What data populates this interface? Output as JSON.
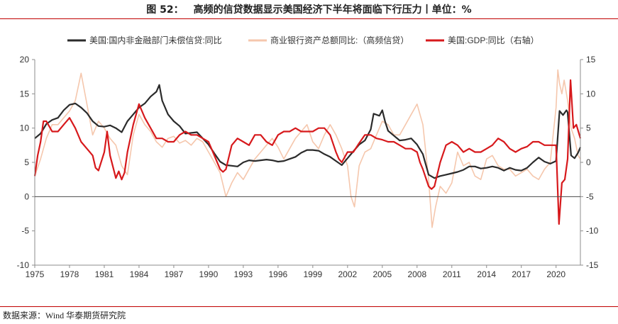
{
  "title": {
    "figure": "图 52：",
    "text": "高频的信贷数据显示美国经济下半年将面临下行压力丨单位：%"
  },
  "source": "数据来源：Wind 华泰期货研究院",
  "colors": {
    "credit": "#2b2b2b",
    "bank": "#f5c7ad",
    "gdp": "#d7191c",
    "accent": "#c00000"
  },
  "chart_data": {
    "type": "line",
    "legend": {
      "position": "top",
      "entries": [
        "美国:国内非金融部门未偿信贷:同比",
        "商业银行资产总额同比:（高频信贷）",
        "美国:GDP:同比（右轴）"
      ]
    },
    "x_ticks": [
      "1975",
      "1978",
      "1981",
      "1984",
      "1987",
      "1990",
      "1993",
      "1996",
      "1999",
      "2002",
      "2005",
      "2008",
      "2011",
      "2014",
      "2017",
      "2020"
    ],
    "xlim": [
      1975,
      2022.1
    ],
    "y_left": {
      "lim": [
        -10,
        20
      ],
      "ticks": [
        "-10",
        "-5",
        "0",
        "5",
        "10",
        "15",
        "20"
      ]
    },
    "y_right": {
      "lim": [
        -15,
        15
      ],
      "ticks": [
        "-15",
        "-10",
        "-5",
        "0",
        "5",
        "10",
        "15"
      ]
    },
    "grid": false,
    "series": [
      {
        "name": "美国:国内非金融部门未偿信贷:同比",
        "axis": "left",
        "x": [
          1975,
          1975.5,
          1976,
          1976.5,
          1977,
          1977.5,
          1978,
          1978.5,
          1979,
          1979.5,
          1980,
          1980.5,
          1981,
          1981.5,
          1982,
          1982.5,
          1983,
          1983.5,
          1984,
          1984.5,
          1985,
          1985.5,
          1985.75,
          1986,
          1986.5,
          1987,
          1987.5,
          1988,
          1989,
          1990,
          1990.5,
          1991,
          1991.5,
          1992,
          1992.5,
          1993,
          1993.5,
          1994,
          1994.5,
          1995,
          1995.5,
          1996,
          1996.5,
          1997,
          1997.5,
          1998,
          1998.5,
          1999,
          1999.5,
          2000,
          2000.5,
          2001,
          2001.5,
          2002,
          2002.5,
          2003,
          2003.5,
          2004,
          2004.25,
          2004.75,
          2005,
          2005.25,
          2005.5,
          2006,
          2006.5,
          2007,
          2007.5,
          2008,
          2008.5,
          2009,
          2009.5,
          2010,
          2010.5,
          2011,
          2011.5,
          2012,
          2012.5,
          2013,
          2013.5,
          2014,
          2014.5,
          2015,
          2015.5,
          2016,
          2016.5,
          2017,
          2017.5,
          2018,
          2018.5,
          2019,
          2019.5,
          2020,
          2020.3,
          2020.6,
          2020.9,
          2021,
          2021.3,
          2021.6,
          2021.9,
          2022.1
        ],
        "values": [
          8.5,
          9.2,
          10.6,
          11.2,
          11.5,
          12.6,
          13.4,
          13.6,
          13,
          12.2,
          11,
          10.3,
          10.2,
          10.4,
          10,
          9.4,
          11,
          12,
          13,
          13.6,
          14.6,
          15.3,
          16.3,
          14,
          12,
          11,
          10.3,
          9.2,
          9.4,
          7.6,
          6.3,
          5.1,
          4.6,
          4.5,
          4.4,
          5,
          5.3,
          5.2,
          5.3,
          5.4,
          5.3,
          5.1,
          5.2,
          5.5,
          5.8,
          6.4,
          6.8,
          6.8,
          6.7,
          6.2,
          5.8,
          5.2,
          4.6,
          5.6,
          6.6,
          7.6,
          8.2,
          9.8,
          12.1,
          11.8,
          12.6,
          10.9,
          9.6,
          8.9,
          8.2,
          8.3,
          8.5,
          7.6,
          6.2,
          3.2,
          2.7,
          3,
          3.2,
          3.4,
          3.6,
          3.9,
          4.4,
          4.4,
          4.1,
          4.2,
          4.4,
          4.2,
          3.8,
          4.2,
          3.9,
          3.8,
          4.2,
          5,
          5.7,
          5.1,
          4.8,
          5.2,
          12.5,
          11.9,
          12.6,
          12.3,
          6,
          5.6,
          6.4,
          7.2
        ]
      },
      {
        "name": "商业银行资产总额同比:（高频信贷）",
        "axis": "left",
        "x": [
          1975,
          1975.5,
          1976,
          1976.5,
          1977,
          1977.5,
          1978,
          1978.5,
          1979,
          1979.5,
          1980,
          1980.5,
          1981,
          1981.5,
          1982,
          1982.5,
          1983,
          1983.5,
          1984,
          1984.5,
          1985,
          1985.5,
          1986,
          1986.5,
          1987,
          1987.5,
          1988,
          1988.5,
          1989,
          1989.5,
          1990,
          1990.5,
          1991,
          1991.5,
          1992,
          1992.5,
          1993,
          1993.5,
          1994,
          1994.5,
          1995,
          1995.5,
          1996,
          1996.5,
          1997,
          1997.5,
          1998,
          1998.5,
          1999,
          1999.5,
          2000,
          2000.5,
          2001,
          2001.5,
          2002,
          2002.3,
          2002.6,
          2003,
          2003.5,
          2004,
          2004.5,
          2005,
          2005.5,
          2006,
          2006.5,
          2007,
          2007.5,
          2008,
          2008.5,
          2009,
          2009.3,
          2009.6,
          2010,
          2010.5,
          2011,
          2011.5,
          2012,
          2012.5,
          2013,
          2013.5,
          2014,
          2014.5,
          2015,
          2015.5,
          2016,
          2016.5,
          2017,
          2017.5,
          2018,
          2018.5,
          2019,
          2019.5,
          2020,
          2020.15,
          2020.3,
          2020.5,
          2020.7,
          2021,
          2021.3,
          2021.6,
          2021.9,
          2022.1
        ],
        "values": [
          3,
          5.5,
          8.5,
          10.5,
          10.5,
          11.5,
          12.5,
          14,
          18,
          13.5,
          9,
          11,
          10,
          8.5,
          7.5,
          4.5,
          3.2,
          9,
          12,
          10.5,
          9.5,
          8,
          7.2,
          8.5,
          8.8,
          7.8,
          8.2,
          7.5,
          8.5,
          8,
          6.5,
          5,
          3.5,
          0,
          2,
          3.5,
          2.5,
          4,
          5.5,
          6.5,
          7.5,
          8.5,
          7.2,
          5.5,
          7,
          8.5,
          9.5,
          10.5,
          8,
          7,
          9,
          10.5,
          9,
          7,
          4.5,
          0,
          -1.5,
          4.5,
          6.5,
          7,
          9,
          11,
          10.5,
          9,
          9,
          10.5,
          12,
          13.5,
          10.5,
          2.5,
          -4.5,
          -1.5,
          1.5,
          0.5,
          2,
          6.5,
          4.5,
          5,
          3,
          2.5,
          5.5,
          6,
          4.5,
          4,
          4,
          3,
          3.5,
          4,
          3,
          2.5,
          4,
          5,
          13,
          18.5,
          16.5,
          15,
          17,
          14,
          10,
          8.5,
          6,
          5.5
        ]
      },
      {
        "name": "美国:GDP:同比（右轴）",
        "axis": "right",
        "x": [
          1975,
          1975.25,
          1975.5,
          1975.75,
          1976,
          1976.5,
          1977,
          1977.5,
          1978,
          1978.5,
          1979,
          1979.5,
          1980,
          1980.25,
          1980.5,
          1981,
          1981.25,
          1981.5,
          1982,
          1982.25,
          1982.5,
          1982.75,
          1983,
          1983.5,
          1984,
          1984.25,
          1984.5,
          1985,
          1985.5,
          1986,
          1986.5,
          1987,
          1987.5,
          1988,
          1988.5,
          1989,
          1989.5,
          1990,
          1990.5,
          1991,
          1991.25,
          1991.5,
          1992,
          1992.5,
          1993,
          1993.5,
          1994,
          1994.5,
          1995,
          1995.5,
          1996,
          1996.5,
          1997,
          1997.5,
          1998,
          1998.5,
          1999,
          1999.5,
          2000,
          2000.5,
          2001,
          2001.25,
          2001.5,
          2002,
          2002.5,
          2003,
          2003.5,
          2004,
          2004.5,
          2005,
          2005.5,
          2006,
          2006.5,
          2007,
          2007.5,
          2008,
          2008.25,
          2008.5,
          2009,
          2009.25,
          2009.5,
          2010,
          2010.5,
          2011,
          2011.5,
          2012,
          2012.5,
          2013,
          2013.5,
          2014,
          2014.5,
          2015,
          2015.5,
          2016,
          2016.5,
          2017,
          2017.5,
          2018,
          2018.5,
          2019,
          2019.5,
          2020,
          2020.25,
          2020.5,
          2020.75,
          2021,
          2021.25,
          2021.5,
          2021.75,
          2022.1
        ],
        "values": [
          -2,
          1,
          3,
          6,
          6,
          4.5,
          4.5,
          5.5,
          6.5,
          5,
          3,
          2,
          1,
          -0.8,
          -1.2,
          1.5,
          4.5,
          1,
          -2.3,
          -1.3,
          -2.5,
          -1.5,
          1.5,
          5.5,
          8.5,
          7.5,
          6.5,
          5,
          3.5,
          3.5,
          3,
          3,
          4,
          4.5,
          4,
          4,
          3.5,
          3,
          1,
          -1,
          -1.4,
          -1,
          2.5,
          3.5,
          3,
          2.5,
          4,
          4,
          3,
          2.5,
          4,
          4.5,
          4.5,
          5,
          4.5,
          4.5,
          4.5,
          5,
          5,
          4,
          1.5,
          0.5,
          0,
          1.5,
          1.5,
          2.8,
          4,
          4,
          3.5,
          3.3,
          3,
          3,
          2.5,
          2,
          2,
          1.5,
          0,
          -1,
          -3.5,
          -3.9,
          -3.5,
          0,
          2.5,
          3,
          2.5,
          1.5,
          2,
          1.5,
          1.5,
          2,
          2.5,
          3.5,
          3,
          2,
          1.5,
          2,
          2.3,
          3,
          3,
          2.5,
          2.5,
          2.5,
          -9,
          -3,
          -2.5,
          0.5,
          12,
          5,
          5.5,
          3.5
        ]
      }
    ]
  }
}
